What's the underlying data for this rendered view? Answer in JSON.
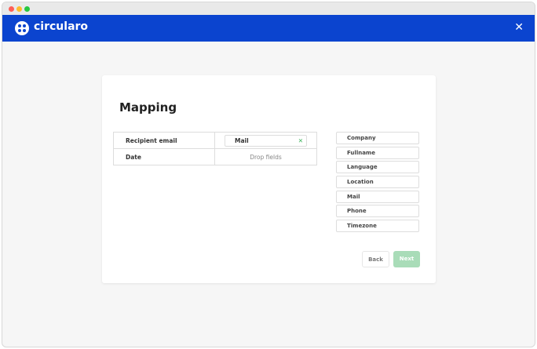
{
  "header": {
    "brand": "circularo",
    "accent": "#0b44cf"
  },
  "mapping": {
    "title": "Mapping",
    "rows": [
      {
        "label": "Recipient email",
        "value": "Mail"
      },
      {
        "label": "Date",
        "placeholder": "Drop fields"
      }
    ],
    "fields": [
      "Company",
      "Fullname",
      "Language",
      "Location",
      "Mail",
      "Phone",
      "Timezone"
    ]
  },
  "buttons": {
    "back": "Back",
    "next": "Next"
  }
}
